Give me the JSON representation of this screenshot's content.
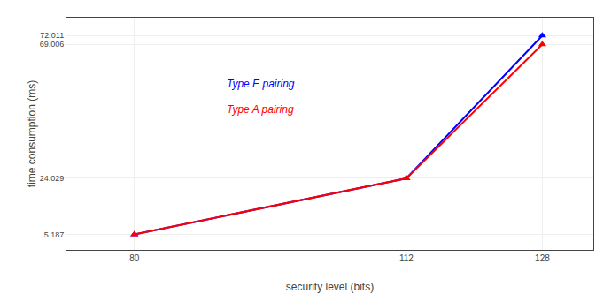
{
  "chart_data": {
    "type": "line",
    "x": [
      80,
      112,
      128
    ],
    "series": [
      {
        "name": "Type E pairing",
        "color": "blue",
        "marker": "triangle-up",
        "values": [
          5.187,
          24.029,
          72.011
        ]
      },
      {
        "name": "Type A pairing",
        "color": "red",
        "marker": "triangle-up",
        "values": [
          5.187,
          24.029,
          69.006
        ]
      }
    ],
    "xlabel": "security level (bits)",
    "ylabel": "time consumption (ms)",
    "xlim": [
      72,
      134
    ],
    "xticks": [
      80,
      112,
      128
    ],
    "ylim": [
      0,
      78
    ],
    "yticks": [
      5.187,
      24.029,
      69.006,
      72.011
    ],
    "grid": true
  }
}
